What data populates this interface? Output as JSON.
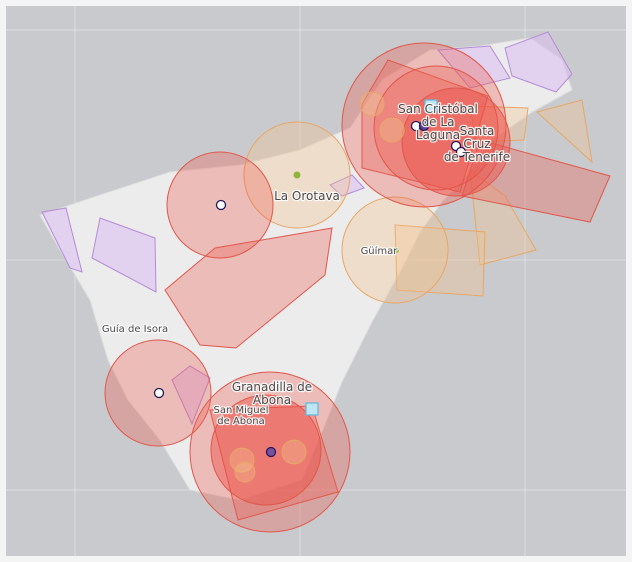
{
  "labels": [
    {
      "lines": [
        "San Cristóbal",
        "de La",
        "Laguna"
      ]
    },
    {
      "lines": [
        "Santa",
        "Cruz",
        "de Tenerife"
      ]
    },
    {
      "lines": [
        "La Orotava"
      ]
    },
    {
      "lines": [
        "Güímar"
      ]
    },
    {
      "lines": [
        "Guía de Isora"
      ]
    },
    {
      "lines": [
        "Granadilla de",
        "Abona"
      ]
    },
    {
      "lines": [
        "San Miguel",
        "de Abona"
      ]
    }
  ]
}
